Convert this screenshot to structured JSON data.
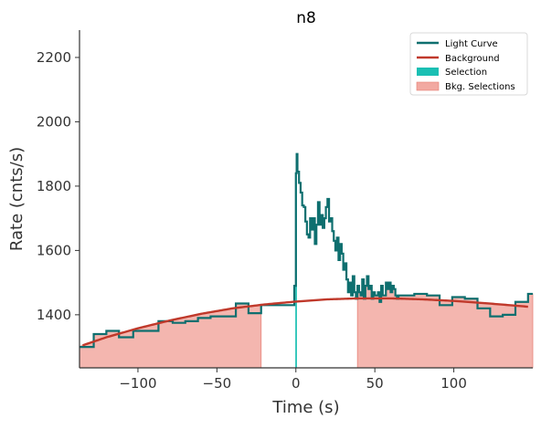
{
  "chart_data": {
    "type": "line",
    "title": "n8",
    "xlabel": "Time (s)",
    "ylabel": "Rate (cnts/s)",
    "xlim": [
      -137,
      150
    ],
    "ylim": [
      1235,
      2285
    ],
    "xticks": [
      -100,
      -50,
      0,
      50,
      100
    ],
    "xtick_labels": [
      "−100",
      "−50",
      "0",
      "50",
      "100"
    ],
    "yticks": [
      1400,
      1600,
      1800,
      2000,
      2200
    ],
    "ytick_labels": [
      "1400",
      "1600",
      "1800",
      "2000",
      "2200"
    ],
    "grid": false,
    "legend_position": "top-right",
    "colors": {
      "light_curve": "#0e6f6f",
      "background": "#c0392b",
      "selection": "#1abfb3",
      "bkg_selection": "#f2a9a1"
    },
    "series": [
      {
        "name": "Light Curve",
        "kind": "step",
        "x": [
          -137,
          -128,
          -120,
          -112,
          -103,
          -95,
          -87,
          -78,
          -70,
          -62,
          -54,
          -46,
          -38,
          -30,
          -22,
          -14,
          -6,
          -1,
          0,
          0.5,
          1,
          2,
          3,
          4,
          5,
          6,
          7,
          8,
          9,
          10,
          11,
          12,
          13,
          14,
          15,
          16,
          17,
          18,
          19,
          20,
          21,
          22,
          23,
          24,
          25,
          26,
          27,
          28,
          29,
          30,
          31,
          32,
          33,
          34,
          35,
          36,
          37,
          38,
          39,
          40,
          41,
          42,
          43,
          44,
          45,
          46,
          47,
          48,
          49,
          50,
          51,
          52,
          53,
          54,
          55,
          56,
          57,
          58,
          59,
          60,
          61,
          62,
          63,
          64,
          65,
          67,
          75,
          83,
          91,
          99,
          107,
          115,
          123,
          131,
          139,
          147,
          150
        ],
        "y": [
          1300,
          1340,
          1350,
          1330,
          1350,
          1350,
          1380,
          1375,
          1380,
          1390,
          1395,
          1395,
          1435,
          1405,
          1430,
          1430,
          1430,
          1490,
          1840,
          1900,
          1845,
          1810,
          1780,
          1740,
          1735,
          1690,
          1650,
          1640,
          1700,
          1665,
          1700,
          1620,
          1680,
          1750,
          1680,
          1710,
          1670,
          1700,
          1735,
          1760,
          1690,
          1700,
          1660,
          1630,
          1600,
          1640,
          1570,
          1620,
          1590,
          1540,
          1560,
          1510,
          1470,
          1500,
          1460,
          1520,
          1470,
          1450,
          1490,
          1470,
          1460,
          1510,
          1450,
          1490,
          1520,
          1480,
          1490,
          1450,
          1470,
          1460,
          1460,
          1470,
          1440,
          1490,
          1460,
          1460,
          1500,
          1480,
          1500,
          1470,
          1490,
          1480,
          1460,
          1450,
          1460,
          1460,
          1465,
          1460,
          1430,
          1455,
          1450,
          1420,
          1395,
          1400,
          1440,
          1465,
          1465
        ]
      },
      {
        "name": "Background",
        "kind": "line",
        "x": [
          -135,
          -120,
          -100,
          -80,
          -60,
          -40,
          -20,
          0,
          20,
          40,
          60,
          80,
          100,
          120,
          135,
          147
        ],
        "y": [
          1305,
          1330,
          1358,
          1382,
          1403,
          1420,
          1432,
          1441,
          1448,
          1451,
          1451,
          1448,
          1443,
          1436,
          1430,
          1425
        ]
      }
    ],
    "selection": {
      "name": "Selection",
      "range": [
        0,
        1
      ]
    },
    "bkg_selections": {
      "name": "Bkg. Selections",
      "ranges": [
        [
          -137,
          -22
        ],
        [
          39,
          150
        ]
      ]
    }
  }
}
